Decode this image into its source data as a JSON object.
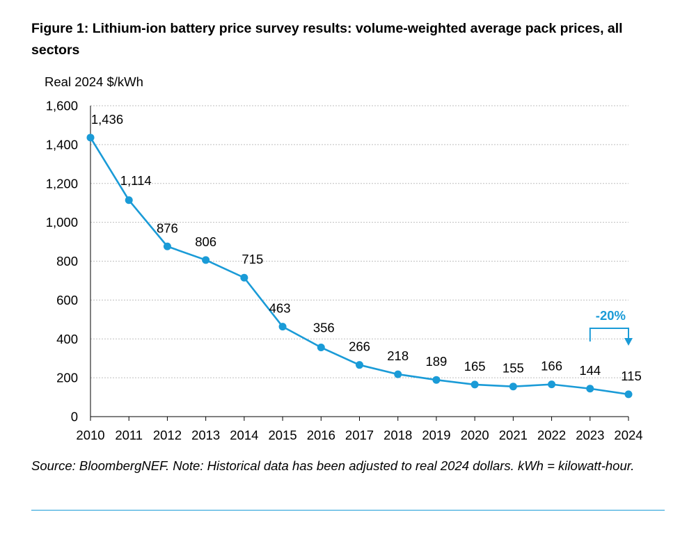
{
  "title": "Figure 1:  Lithium-ion battery price survey results: volume-weighted average pack prices, all sectors",
  "source_note": "Source: BloombergNEF. Note: Historical data has been adjusted to real 2024 dollars. kWh = kilowatt-hour.",
  "colors": {
    "series": "#1a9bd7",
    "grid": "#bfbfbf",
    "axis": "#000000",
    "rule": "#1a9bd7"
  },
  "chart_data": {
    "type": "line",
    "title": "Figure 1:  Lithium-ion battery price survey results: volume-weighted average pack prices, all sectors",
    "ylabel": "Real 2024 $/kWh",
    "xlabel": "",
    "x": [
      "2010",
      "2011",
      "2012",
      "2013",
      "2014",
      "2015",
      "2016",
      "2017",
      "2018",
      "2019",
      "2020",
      "2021",
      "2022",
      "2023",
      "2024"
    ],
    "series": [
      {
        "values": [
          1436,
          1114,
          876,
          806,
          715,
          463,
          356,
          266,
          218,
          189,
          165,
          155,
          166,
          144,
          115
        ]
      }
    ],
    "data_labels": [
      "1,436",
      "1,114",
      "876",
      "806",
      "715",
      "463",
      "356",
      "266",
      "218",
      "189",
      "165",
      "155",
      "166",
      "144",
      "115"
    ],
    "ylim": [
      0,
      1600
    ],
    "yticks": [
      0,
      200,
      400,
      600,
      800,
      1000,
      1200,
      1400,
      1600
    ],
    "ytick_labels": [
      "0",
      "200",
      "400",
      "600",
      "800",
      "1,000",
      "1,200",
      "1,400",
      "1,600"
    ],
    "grid": "horizontal dotted",
    "legend": "none",
    "annotation": {
      "text": "-20%",
      "from": "2023",
      "to": "2024"
    }
  }
}
